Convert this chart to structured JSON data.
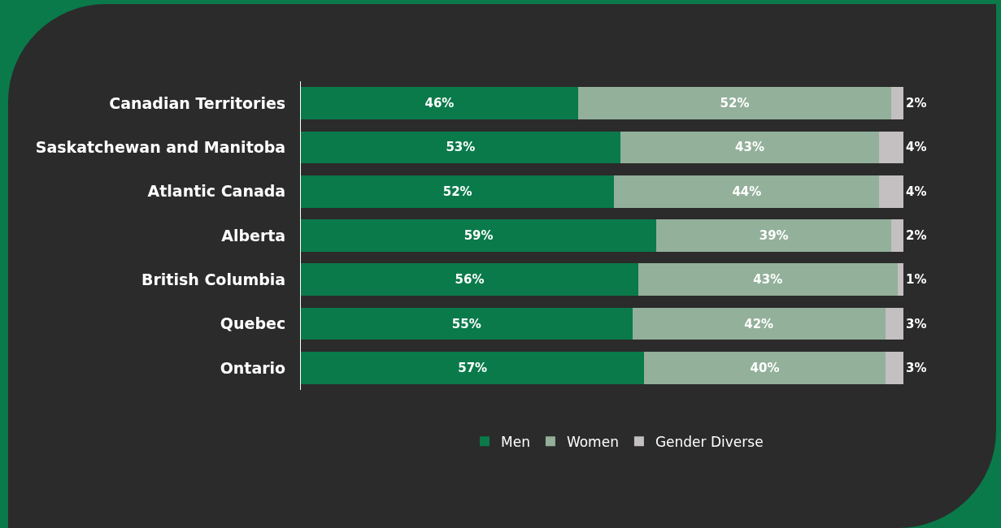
{
  "chart_data": {
    "type": "bar",
    "orientation": "horizontal",
    "stacked": true,
    "legend": "bottom",
    "grid": false,
    "tick_labels": "y",
    "categories": [
      "Canadian Territories",
      "Saskatchewan and Manitoba",
      "Atlantic Canada",
      "Alberta",
      "British Columbia",
      "Quebec",
      "Ontario"
    ],
    "series": [
      {
        "name": "Men",
        "color": "#0a7a4a",
        "values": [
          46,
          53,
          52,
          59,
          56,
          55,
          57
        ],
        "value_labels": [
          "46%",
          "53%",
          "52%",
          "59%",
          "56%",
          "55%",
          "57%"
        ]
      },
      {
        "name": "Women",
        "color": "#93b09a",
        "values": [
          52,
          43,
          44,
          39,
          43,
          42,
          40
        ],
        "value_labels": [
          "52%",
          "43%",
          "44%",
          "39%",
          "43%",
          "42%",
          "40%"
        ]
      },
      {
        "name": "Gender Diverse",
        "color": "#c4bfc1",
        "values": [
          2,
          4,
          4,
          2,
          1,
          3,
          3
        ],
        "value_labels": [
          "2%",
          "4%",
          "4%",
          "2%",
          "1%",
          "3%",
          "3%"
        ]
      }
    ]
  }
}
